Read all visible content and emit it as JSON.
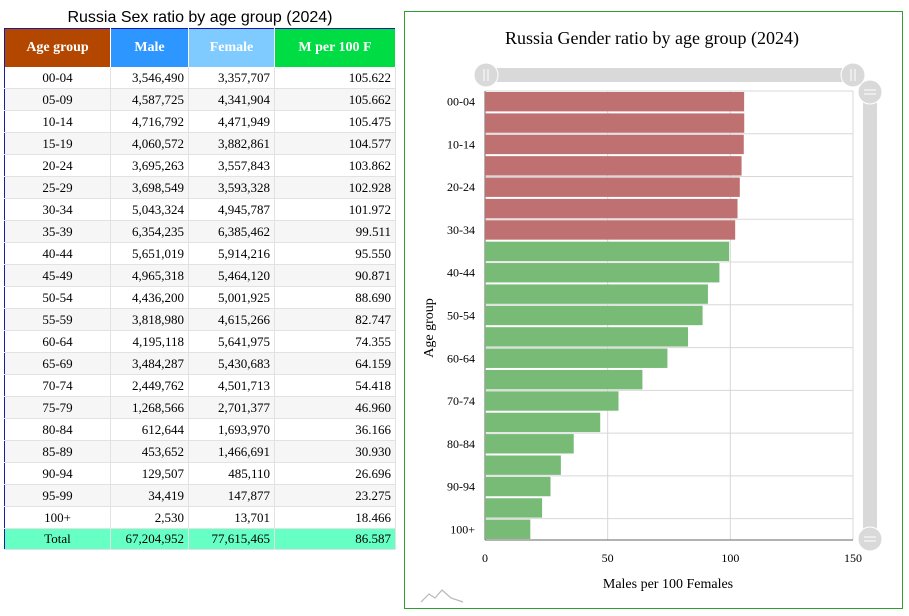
{
  "table": {
    "title": "Russia Sex ratio by age group (2024)",
    "headers": [
      "Age group",
      "Male",
      "Female",
      "M per 100 F"
    ],
    "header_colors": [
      "#b34700",
      "#2e97ff",
      "#7fcaff",
      "#00dd44"
    ],
    "rows": [
      [
        "00-04",
        "3,546,490",
        "3,357,707",
        "105.622"
      ],
      [
        "05-09",
        "4,587,725",
        "4,341,904",
        "105.662"
      ],
      [
        "10-14",
        "4,716,792",
        "4,471,949",
        "105.475"
      ],
      [
        "15-19",
        "4,060,572",
        "3,882,861",
        "104.577"
      ],
      [
        "20-24",
        "3,695,263",
        "3,557,843",
        "103.862"
      ],
      [
        "25-29",
        "3,698,549",
        "3,593,328",
        "102.928"
      ],
      [
        "30-34",
        "5,043,324",
        "4,945,787",
        "101.972"
      ],
      [
        "35-39",
        "6,354,235",
        "6,385,462",
        "99.511"
      ],
      [
        "40-44",
        "5,651,019",
        "5,914,216",
        "95.550"
      ],
      [
        "45-49",
        "4,965,318",
        "5,464,120",
        "90.871"
      ],
      [
        "50-54",
        "4,436,200",
        "5,001,925",
        "88.690"
      ],
      [
        "55-59",
        "3,818,980",
        "4,615,266",
        "82.747"
      ],
      [
        "60-64",
        "4,195,118",
        "5,641,975",
        "74.355"
      ],
      [
        "65-69",
        "3,484,287",
        "5,430,683",
        "64.159"
      ],
      [
        "70-74",
        "2,449,762",
        "4,501,713",
        "54.418"
      ],
      [
        "75-79",
        "1,268,566",
        "2,701,377",
        "46.960"
      ],
      [
        "80-84",
        "612,644",
        "1,693,970",
        "36.166"
      ],
      [
        "85-89",
        "453,652",
        "1,466,691",
        "30.930"
      ],
      [
        "90-94",
        "129,507",
        "485,110",
        "26.696"
      ],
      [
        "95-99",
        "34,419",
        "147,877",
        "23.275"
      ],
      [
        "100+",
        "2,530",
        "13,701",
        "18.466"
      ]
    ],
    "total": [
      "Total",
      "67,204,952",
      "77,615,465",
      "86.587"
    ],
    "total_color": "#66ffc4"
  },
  "chart_data": {
    "type": "bar",
    "orientation": "horizontal",
    "title": "Russia Gender ratio by age group (2024)",
    "xlabel": "Males per 100 Females",
    "ylabel": "Age group",
    "xlim": [
      0,
      150
    ],
    "xticks": [
      0,
      50,
      100,
      150
    ],
    "categories": [
      "00-04",
      "05-09",
      "10-14",
      "15-19",
      "20-24",
      "25-29",
      "30-34",
      "35-39",
      "40-44",
      "45-49",
      "50-54",
      "55-59",
      "60-64",
      "65-69",
      "70-74",
      "75-79",
      "80-84",
      "85-89",
      "90-94",
      "95-99",
      "100+"
    ],
    "ytick_labels": [
      "00-04",
      "",
      "10-14",
      "",
      "20-24",
      "",
      "30-34",
      "",
      "40-44",
      "",
      "50-54",
      "",
      "60-64",
      "",
      "70-74",
      "",
      "80-84",
      "",
      "90-94",
      "",
      "100+"
    ],
    "values": [
      105.622,
      105.662,
      105.475,
      104.577,
      103.862,
      102.928,
      101.972,
      99.511,
      95.55,
      90.871,
      88.69,
      82.747,
      74.355,
      64.159,
      54.418,
      46.96,
      36.166,
      30.93,
      26.696,
      23.275,
      18.466
    ],
    "colors": {
      "above_100": "#bf7070",
      "below_100": "#77bb77"
    },
    "grid": true,
    "legend": "none",
    "panel_border_color": "#2e9e2e"
  }
}
